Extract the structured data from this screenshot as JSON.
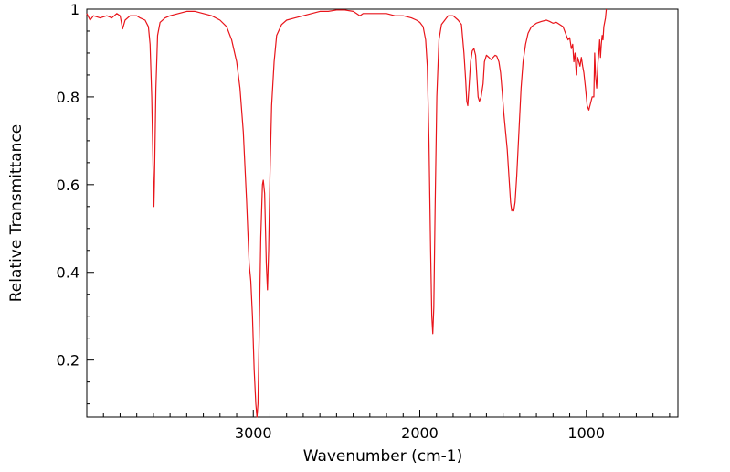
{
  "chart_data": {
    "type": "line",
    "title": "",
    "xlabel": "Wavenumber (cm-1)",
    "ylabel": "Relative Transmittance",
    "xlim": [
      4000,
      450
    ],
    "ylim": [
      0.07,
      1.0
    ],
    "x_ticks": [
      {
        "value": 3000,
        "label": "3000"
      },
      {
        "value": 2000,
        "label": "2000"
      },
      {
        "value": 1000,
        "label": "1000"
      }
    ],
    "y_ticks": [
      {
        "value": 1.0,
        "label": "1"
      },
      {
        "value": 0.8,
        "label": "0.8"
      },
      {
        "value": 0.6,
        "label": "0.6"
      },
      {
        "value": 0.4,
        "label": "0.4"
      },
      {
        "value": 0.2,
        "label": "0.2"
      }
    ],
    "grid": false,
    "series": [
      {
        "color": "#e8141a",
        "points": [
          [
            4000,
            0.99
          ],
          [
            3980,
            0.975
          ],
          [
            3960,
            0.985
          ],
          [
            3920,
            0.98
          ],
          [
            3880,
            0.985
          ],
          [
            3850,
            0.98
          ],
          [
            3820,
            0.99
          ],
          [
            3800,
            0.985
          ],
          [
            3785,
            0.955
          ],
          [
            3770,
            0.975
          ],
          [
            3740,
            0.985
          ],
          [
            3700,
            0.985
          ],
          [
            3680,
            0.98
          ],
          [
            3650,
            0.975
          ],
          [
            3630,
            0.96
          ],
          [
            3620,
            0.92
          ],
          [
            3610,
            0.8
          ],
          [
            3600,
            0.6
          ],
          [
            3597,
            0.55
          ],
          [
            3594,
            0.6
          ],
          [
            3585,
            0.82
          ],
          [
            3575,
            0.94
          ],
          [
            3560,
            0.97
          ],
          [
            3530,
            0.98
          ],
          [
            3500,
            0.985
          ],
          [
            3450,
            0.99
          ],
          [
            3400,
            0.995
          ],
          [
            3350,
            0.995
          ],
          [
            3300,
            0.99
          ],
          [
            3250,
            0.985
          ],
          [
            3200,
            0.975
          ],
          [
            3160,
            0.96
          ],
          [
            3130,
            0.93
          ],
          [
            3100,
            0.88
          ],
          [
            3080,
            0.82
          ],
          [
            3060,
            0.72
          ],
          [
            3040,
            0.56
          ],
          [
            3025,
            0.42
          ],
          [
            3015,
            0.38
          ],
          [
            3005,
            0.3
          ],
          [
            2995,
            0.18
          ],
          [
            2985,
            0.1
          ],
          [
            2978,
            0.07
          ],
          [
            2972,
            0.1
          ],
          [
            2965,
            0.25
          ],
          [
            2955,
            0.48
          ],
          [
            2945,
            0.6
          ],
          [
            2940,
            0.61
          ],
          [
            2932,
            0.58
          ],
          [
            2922,
            0.42
          ],
          [
            2915,
            0.36
          ],
          [
            2908,
            0.45
          ],
          [
            2900,
            0.62
          ],
          [
            2890,
            0.78
          ],
          [
            2875,
            0.88
          ],
          [
            2860,
            0.94
          ],
          [
            2830,
            0.965
          ],
          [
            2800,
            0.975
          ],
          [
            2750,
            0.98
          ],
          [
            2700,
            0.985
          ],
          [
            2650,
            0.99
          ],
          [
            2600,
            0.995
          ],
          [
            2550,
            0.995
          ],
          [
            2500,
            0.998
          ],
          [
            2450,
            0.998
          ],
          [
            2400,
            0.995
          ],
          [
            2380,
            0.99
          ],
          [
            2360,
            0.985
          ],
          [
            2340,
            0.99
          ],
          [
            2300,
            0.99
          ],
          [
            2250,
            0.99
          ],
          [
            2200,
            0.99
          ],
          [
            2150,
            0.985
          ],
          [
            2100,
            0.985
          ],
          [
            2050,
            0.98
          ],
          [
            2020,
            0.975
          ],
          [
            2000,
            0.97
          ],
          [
            1980,
            0.96
          ],
          [
            1965,
            0.93
          ],
          [
            1955,
            0.87
          ],
          [
            1945,
            0.7
          ],
          [
            1935,
            0.45
          ],
          [
            1928,
            0.3
          ],
          [
            1922,
            0.26
          ],
          [
            1916,
            0.32
          ],
          [
            1908,
            0.55
          ],
          [
            1898,
            0.8
          ],
          [
            1885,
            0.93
          ],
          [
            1870,
            0.965
          ],
          [
            1850,
            0.975
          ],
          [
            1830,
            0.985
          ],
          [
            1800,
            0.985
          ],
          [
            1770,
            0.975
          ],
          [
            1750,
            0.965
          ],
          [
            1735,
            0.9
          ],
          [
            1725,
            0.84
          ],
          [
            1718,
            0.79
          ],
          [
            1712,
            0.78
          ],
          [
            1705,
            0.82
          ],
          [
            1695,
            0.88
          ],
          [
            1685,
            0.905
          ],
          [
            1675,
            0.91
          ],
          [
            1665,
            0.895
          ],
          [
            1658,
            0.85
          ],
          [
            1650,
            0.8
          ],
          [
            1642,
            0.79
          ],
          [
            1632,
            0.8
          ],
          [
            1620,
            0.83
          ],
          [
            1612,
            0.88
          ],
          [
            1600,
            0.895
          ],
          [
            1585,
            0.89
          ],
          [
            1572,
            0.885
          ],
          [
            1560,
            0.89
          ],
          [
            1548,
            0.895
          ],
          [
            1538,
            0.893
          ],
          [
            1525,
            0.88
          ],
          [
            1515,
            0.855
          ],
          [
            1505,
            0.81
          ],
          [
            1495,
            0.76
          ],
          [
            1485,
            0.72
          ],
          [
            1475,
            0.68
          ],
          [
            1465,
            0.62
          ],
          [
            1455,
            0.56
          ],
          [
            1448,
            0.54
          ],
          [
            1442,
            0.545
          ],
          [
            1436,
            0.54
          ],
          [
            1428,
            0.56
          ],
          [
            1418,
            0.62
          ],
          [
            1405,
            0.72
          ],
          [
            1392,
            0.82
          ],
          [
            1380,
            0.88
          ],
          [
            1365,
            0.92
          ],
          [
            1350,
            0.945
          ],
          [
            1330,
            0.96
          ],
          [
            1300,
            0.968
          ],
          [
            1270,
            0.972
          ],
          [
            1240,
            0.975
          ],
          [
            1220,
            0.972
          ],
          [
            1200,
            0.968
          ],
          [
            1180,
            0.97
          ],
          [
            1160,
            0.965
          ],
          [
            1140,
            0.96
          ],
          [
            1120,
            0.94
          ],
          [
            1110,
            0.93
          ],
          [
            1100,
            0.935
          ],
          [
            1090,
            0.91
          ],
          [
            1082,
            0.92
          ],
          [
            1075,
            0.88
          ],
          [
            1068,
            0.9
          ],
          [
            1060,
            0.85
          ],
          [
            1052,
            0.89
          ],
          [
            1045,
            0.88
          ],
          [
            1038,
            0.87
          ],
          [
            1030,
            0.89
          ],
          [
            1022,
            0.87
          ],
          [
            1015,
            0.855
          ],
          [
            1005,
            0.82
          ],
          [
            995,
            0.78
          ],
          [
            985,
            0.77
          ],
          [
            975,
            0.785
          ],
          [
            965,
            0.8
          ],
          [
            955,
            0.8
          ],
          [
            950,
            0.9
          ],
          [
            945,
            0.85
          ],
          [
            938,
            0.82
          ],
          [
            930,
            0.88
          ],
          [
            925,
            0.9
          ],
          [
            920,
            0.93
          ],
          [
            915,
            0.89
          ],
          [
            910,
            0.92
          ],
          [
            905,
            0.94
          ],
          [
            900,
            0.93
          ],
          [
            895,
            0.96
          ],
          [
            890,
            0.97
          ],
          [
            885,
            0.98
          ],
          [
            880,
            1.0
          ]
        ]
      }
    ]
  }
}
